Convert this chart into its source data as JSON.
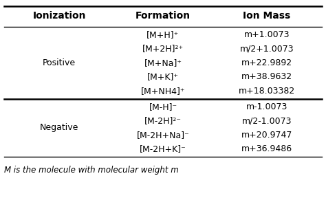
{
  "headers": [
    "Ionization",
    "Formation",
    "Ion Mass"
  ],
  "positive_label": "Positive",
  "negative_label": "Negative",
  "positive_rows": [
    {
      "formation": "[M+H]⁺",
      "ion_mass": "m+1.0073"
    },
    {
      "formation": "[M+2H]²⁺",
      "ion_mass": "m/2+1.0073"
    },
    {
      "formation": "[M+Na]⁺",
      "ion_mass": "m+22.9892"
    },
    {
      "formation": "[M+K]⁺",
      "ion_mass": "m+38.9632"
    },
    {
      "formation": "[M+NH4]⁺",
      "ion_mass": "m+18.03382"
    }
  ],
  "negative_rows": [
    {
      "formation": "[M-H]⁻",
      "ion_mass": "m-1.0073"
    },
    {
      "formation": "[M-2H]²⁻",
      "ion_mass": "m/2-1.0073"
    },
    {
      "formation": "[M-2H+Na]⁻",
      "ion_mass": "m+20.9747"
    },
    {
      "formation": "[M-2H+K]⁻",
      "ion_mass": "m+36.9486"
    }
  ],
  "footnote": "M is the molecule with molecular weight m",
  "bg_color": "#ffffff",
  "header_line_color": "#000000",
  "section_line_color": "#000000",
  "text_color": "#000000",
  "header_fontsize": 10,
  "body_fontsize": 9,
  "footnote_fontsize": 8.5
}
